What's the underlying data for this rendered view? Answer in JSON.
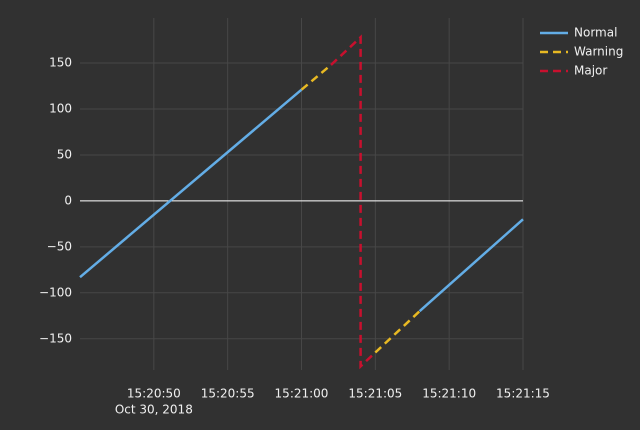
{
  "chart_data": {
    "type": "line",
    "xlim": [
      "2018-10-30 15:20:45",
      "2018-10-30 15:21:15"
    ],
    "xticks": [
      {
        "value": "2018-10-30 15:20:50",
        "label": "15:20:50"
      },
      {
        "value": "2018-10-30 15:20:55",
        "label": "15:20:55"
      },
      {
        "value": "2018-10-30 15:21:00",
        "label": "15:21:00"
      },
      {
        "value": "2018-10-30 15:21:05",
        "label": "15:21:05"
      },
      {
        "value": "2018-10-30 15:21:10",
        "label": "15:21:10"
      },
      {
        "value": "2018-10-30 15:21:15",
        "label": "15:21:15"
      }
    ],
    "x_date_label": "Oct 30, 2018",
    "ylim": [
      -184,
      199
    ],
    "yticks": [
      {
        "value": -150,
        "label": "−150"
      },
      {
        "value": -100,
        "label": "−100"
      },
      {
        "value": -50,
        "label": "−50"
      },
      0,
      50,
      100,
      150
    ],
    "grid": true,
    "zeroline": true,
    "legend": "top-right",
    "series": [
      {
        "name": "Normal",
        "color": "#63ade6",
        "dash": "solid",
        "x": [
          "2018-10-30 15:20:45",
          "2018-10-30 15:21:00",
          "2018-10-30 15:21:04",
          "2018-10-30 15:21:08",
          "2018-10-30 15:21:15"
        ],
        "values": [
          -83,
          121,
          null,
          -120,
          -20
        ]
      },
      {
        "name": "Warning",
        "color": "#e8b923",
        "dash": "dashed",
        "x": [
          "2018-10-30 15:21:00",
          "2018-10-30 15:21:02",
          "2018-10-30 15:21:04",
          "2018-10-30 15:21:05",
          "2018-10-30 15:21:08"
        ],
        "values": [
          121,
          148,
          null,
          -165,
          -120
        ]
      },
      {
        "name": "Major",
        "color": "#c8102e",
        "dash": "dashed",
        "x": [
          "2018-10-30 15:21:02",
          "2018-10-30 15:21:04",
          "2018-10-30 15:21:04",
          "2018-10-30 15:21:05"
        ],
        "values": [
          148,
          178,
          -180,
          -165
        ]
      }
    ]
  }
}
